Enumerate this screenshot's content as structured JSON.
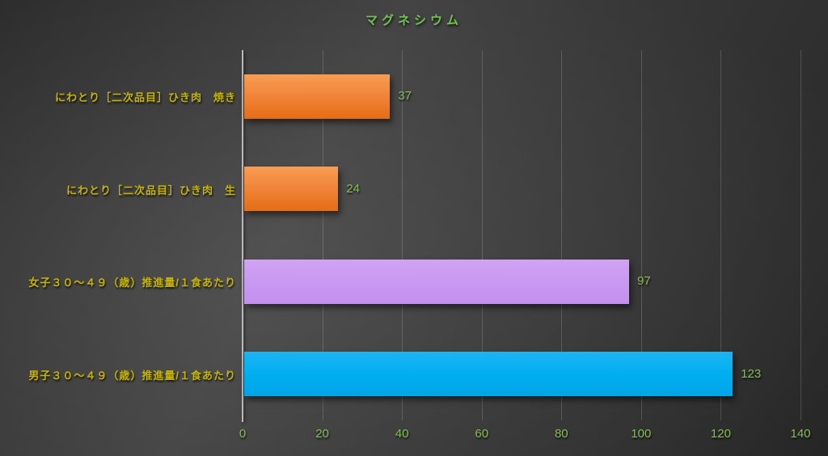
{
  "chart_data": {
    "type": "bar",
    "orientation": "horizontal",
    "title": "マグネシウム",
    "categories": [
      "にわとり［二次品目］ひき肉　焼き",
      "にわとり［二次品目］ひき肉　生",
      "女子３０～４９（歳）推進量/１食あたり",
      "男子３０～４９（歳）推進量/１食あたり"
    ],
    "values": [
      37,
      24,
      97,
      123
    ],
    "data_labels": [
      "37",
      "24",
      "97",
      "123"
    ],
    "xlim": [
      0,
      140
    ],
    "xticks": [
      0,
      20,
      40,
      60,
      80,
      100,
      120,
      140
    ],
    "grid": "vertical-only",
    "legend": "none",
    "bar_styles": [
      {
        "name": "orange",
        "top": "#F79D52",
        "mid": "#EF8136",
        "bottom": "#E56D15"
      },
      {
        "name": "orange",
        "top": "#F79D52",
        "mid": "#EF8136",
        "bottom": "#E56D15"
      },
      {
        "name": "lavender",
        "top": "#CFA3F4",
        "mid": "#C998F1",
        "bottom": "#C28FEE"
      },
      {
        "name": "cyan",
        "top": "#1CB4F2",
        "mid": "#00AEF0",
        "bottom": "#00A5E8"
      }
    ],
    "colors": {
      "title": "#6FC351",
      "tick_label": "#84BC55",
      "value_label": "#84BC55",
      "category_label": "#C6B400",
      "axis_line": "#B9B9B9",
      "gridline": "rgba(255,255,255,0.16)"
    }
  }
}
